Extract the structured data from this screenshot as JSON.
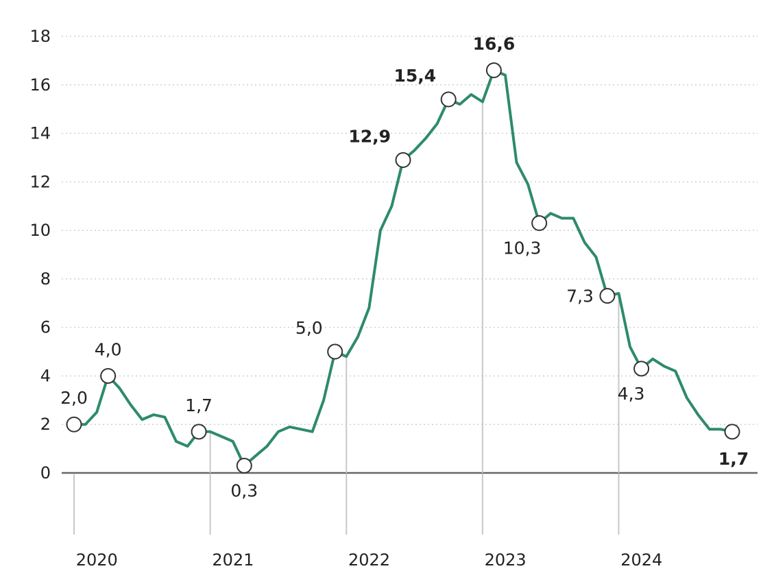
{
  "chart_data": {
    "type": "line",
    "title": "",
    "xlabel": "",
    "ylabel": "",
    "ylim": [
      0,
      18
    ],
    "y_ticks": [
      "0",
      "2",
      "4",
      "6",
      "8",
      "10",
      "12",
      "14",
      "16",
      "18"
    ],
    "x_ticks": [
      {
        "label": "2020",
        "x": 0.5
      },
      {
        "label": "2021",
        "x": 12.5
      },
      {
        "label": "2022",
        "x": 24.5
      },
      {
        "label": "2023",
        "x": 36.5
      },
      {
        "label": "2024",
        "x": 48.5
      }
    ],
    "grid": true,
    "legend": "none",
    "colors": {
      "line": "#2e8b6a",
      "grid": "#cfcfcf",
      "zero_line": "#666666",
      "year_marker": "#c8c8c8"
    },
    "year_markers": [
      0,
      12,
      24,
      36,
      48
    ],
    "series": [
      {
        "x": [
          0,
          1,
          2,
          3,
          4,
          5,
          6,
          7,
          8,
          9,
          10,
          11,
          12,
          13,
          14,
          15,
          16,
          17,
          18,
          19,
          20,
          21,
          22,
          23,
          24,
          25,
          26,
          27,
          28,
          29,
          30,
          31,
          32,
          33,
          34,
          35,
          36,
          37,
          38,
          39,
          40,
          41,
          42,
          43,
          44,
          45,
          46,
          47,
          48,
          49,
          50,
          51,
          52,
          53,
          54,
          55,
          56,
          57,
          58
        ],
        "values": [
          2.0,
          2.0,
          2.5,
          4.0,
          3.5,
          2.8,
          2.2,
          2.4,
          2.3,
          1.3,
          1.1,
          1.7,
          1.7,
          1.5,
          1.3,
          0.3,
          0.7,
          1.1,
          1.7,
          1.9,
          1.8,
          1.7,
          3.0,
          5.0,
          4.8,
          5.6,
          6.8,
          10.0,
          11.0,
          12.9,
          13.3,
          13.8,
          14.4,
          15.4,
          15.2,
          15.6,
          15.3,
          16.6,
          16.4,
          12.8,
          11.9,
          10.3,
          10.7,
          10.5,
          10.5,
          9.5,
          8.9,
          7.3,
          7.4,
          5.2,
          4.3,
          4.7,
          4.4,
          4.2,
          3.1,
          2.4,
          1.8,
          1.8,
          1.7
        ]
      }
    ],
    "annotations": [
      {
        "label": "2,0",
        "x": 0,
        "y": 2.0,
        "pos": "above",
        "bold": false
      },
      {
        "label": "4,0",
        "x": 3,
        "y": 4.0,
        "pos": "above",
        "bold": false
      },
      {
        "label": "1,7",
        "x": 11,
        "y": 1.7,
        "pos": "above",
        "bold": false
      },
      {
        "label": "0,3",
        "x": 15,
        "y": 0.3,
        "pos": "below",
        "bold": false
      },
      {
        "label": "5,0",
        "x": 23,
        "y": 5.0,
        "pos": "above-left",
        "bold": false
      },
      {
        "label": "12,9",
        "x": 29,
        "y": 12.9,
        "pos": "above-left",
        "bold": true
      },
      {
        "label": "15,4",
        "x": 33,
        "y": 15.4,
        "pos": "above-left",
        "bold": true
      },
      {
        "label": "16,6",
        "x": 37,
        "y": 16.6,
        "pos": "above",
        "bold": true
      },
      {
        "label": "10,3",
        "x": 41,
        "y": 10.3,
        "pos": "below-left",
        "bold": false
      },
      {
        "label": "7,3",
        "x": 47,
        "y": 7.3,
        "pos": "left",
        "bold": false
      },
      {
        "label": "4,3",
        "x": 50,
        "y": 4.3,
        "pos": "below-left",
        "bold": false
      },
      {
        "label": "1,7",
        "x": 58,
        "y": 1.7,
        "pos": "below-left",
        "bold": true
      }
    ]
  }
}
